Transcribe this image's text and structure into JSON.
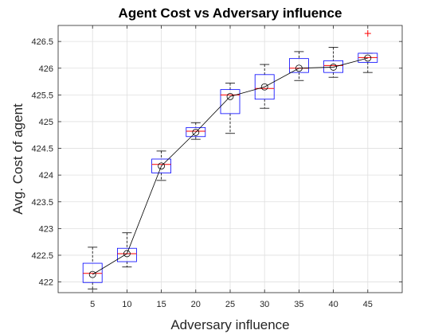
{
  "chart_data": {
    "type": "boxplot",
    "title": "Agent Cost vs Adversary influence",
    "xlabel": "Adversary influence",
    "ylabel": "Avg. Cost of agent",
    "x": [
      5,
      10,
      15,
      20,
      25,
      30,
      35,
      40,
      45
    ],
    "x_tick_labels": [
      "5",
      "10",
      "15",
      "20",
      "25",
      "30",
      "35",
      "40",
      "45"
    ],
    "ylim": [
      421.8,
      426.8
    ],
    "y_ticks": [
      422,
      422.5,
      423,
      423.5,
      424,
      424.5,
      425,
      425.5,
      426,
      426.5
    ],
    "y_tick_labels": [
      "422",
      "422.5",
      "423",
      "423.5",
      "424",
      "424.5",
      "425",
      "425.5",
      "426",
      "426.5"
    ],
    "grid": true,
    "boxes": [
      {
        "x": 5,
        "whisker_low": 421.87,
        "q1": 421.99,
        "median": 422.16,
        "q3": 422.35,
        "whisker_high": 422.65,
        "mean": 422.14
      },
      {
        "x": 10,
        "whisker_low": 422.28,
        "q1": 422.38,
        "median": 422.53,
        "q3": 422.63,
        "whisker_high": 422.92,
        "mean": 422.53
      },
      {
        "x": 15,
        "whisker_low": 423.9,
        "q1": 424.04,
        "median": 424.2,
        "q3": 424.3,
        "whisker_high": 424.45,
        "mean": 424.17
      },
      {
        "x": 20,
        "whisker_low": 424.67,
        "q1": 424.72,
        "median": 424.82,
        "q3": 424.89,
        "whisker_high": 424.98,
        "mean": 424.8
      },
      {
        "x": 25,
        "whisker_low": 424.78,
        "q1": 425.15,
        "median": 425.5,
        "q3": 425.6,
        "whisker_high": 425.72,
        "mean": 425.47
      },
      {
        "x": 30,
        "whisker_low": 425.25,
        "q1": 425.42,
        "median": 425.62,
        "q3": 425.88,
        "whisker_high": 426.07,
        "mean": 425.65
      },
      {
        "x": 35,
        "whisker_low": 425.77,
        "q1": 425.92,
        "median": 426.0,
        "q3": 426.18,
        "whisker_high": 426.31,
        "mean": 426.0
      },
      {
        "x": 40,
        "whisker_low": 425.83,
        "q1": 425.92,
        "median": 426.05,
        "q3": 426.14,
        "whisker_high": 426.39,
        "mean": 426.02
      },
      {
        "x": 45,
        "whisker_low": 425.92,
        "q1": 426.11,
        "median": 426.2,
        "q3": 426.28,
        "whisker_high": 426.28,
        "mean": 426.19
      }
    ],
    "outliers": [
      {
        "x": 45,
        "y": 426.65
      }
    ],
    "colors": {
      "box": "#0000ff",
      "median": "#ff0000",
      "whisker": "#000000",
      "outlier": "#ff0000",
      "mean_line": "#000000",
      "grid": "#dfdfdf",
      "axis": "#262626"
    }
  }
}
